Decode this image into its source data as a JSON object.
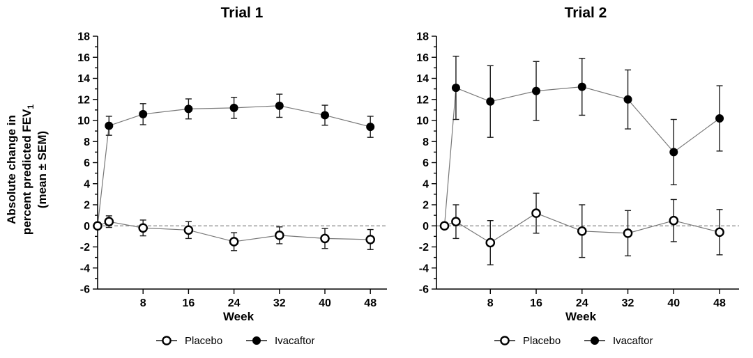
{
  "figure": {
    "background": "#ffffff",
    "ink_color": "#000000",
    "line_color": "#777777",
    "errorbar_color": "#1a1a1a",
    "zero_line_color": "#888888",
    "y_axis_label_lines": [
      [
        {
          "t": "Absolute change in"
        }
      ],
      [
        {
          "t": "percent predicted FEV"
        },
        {
          "t": "1",
          "sub": true
        }
      ],
      [
        {
          "t": "(mean ± SEM)"
        }
      ]
    ]
  },
  "chart_data": [
    {
      "type": "line",
      "title": "Trial 1",
      "xlabel": "Week",
      "ylabel": "Absolute change in percent predicted FEV1 (mean ± SEM)",
      "x": [
        0,
        2,
        8,
        16,
        24,
        32,
        40,
        48
      ],
      "xticks": [
        8,
        16,
        24,
        32,
        40,
        48
      ],
      "ylim": [
        -6,
        18
      ],
      "yticks": [
        -6,
        -4,
        -2,
        0,
        2,
        4,
        6,
        8,
        10,
        12,
        14,
        16,
        18
      ],
      "minor_ytick_step": 1,
      "grid": false,
      "zero_reference_line": true,
      "legend_position": "bottom",
      "series": [
        {
          "name": "Ivacaftor",
          "marker": "filled-circle",
          "values": [
            0.0,
            9.5,
            10.6,
            11.1,
            11.2,
            11.4,
            10.5,
            9.4
          ],
          "sem": [
            0.0,
            0.9,
            1.0,
            0.95,
            1.0,
            1.1,
            0.95,
            1.0
          ]
        },
        {
          "name": "Placebo",
          "marker": "open-circle",
          "values": [
            0.0,
            0.4,
            -0.2,
            -0.4,
            -1.5,
            -0.9,
            -1.2,
            -1.3
          ],
          "sem": [
            0.0,
            0.55,
            0.75,
            0.8,
            0.85,
            0.8,
            0.95,
            0.95
          ]
        }
      ]
    },
    {
      "type": "line",
      "title": "Trial 2",
      "xlabel": "Week",
      "ylabel": "Absolute change in percent predicted FEV1 (mean ± SEM)",
      "x": [
        0,
        2,
        8,
        16,
        24,
        32,
        40,
        48
      ],
      "xticks": [
        8,
        16,
        24,
        32,
        40,
        48
      ],
      "ylim": [
        -6,
        18
      ],
      "yticks": [
        -6,
        -4,
        -2,
        0,
        2,
        4,
        6,
        8,
        10,
        12,
        14,
        16,
        18
      ],
      "minor_ytick_step": 1,
      "grid": false,
      "zero_reference_line": true,
      "legend_position": "bottom",
      "series": [
        {
          "name": "Ivacaftor",
          "marker": "filled-circle",
          "values": [
            0.0,
            13.1,
            11.8,
            12.8,
            13.2,
            12.0,
            7.0,
            10.2
          ],
          "sem": [
            0.0,
            3.0,
            3.4,
            2.8,
            2.7,
            2.8,
            3.1,
            3.1
          ]
        },
        {
          "name": "Placebo",
          "marker": "open-circle",
          "values": [
            0.0,
            0.4,
            -1.6,
            1.2,
            -0.5,
            -0.7,
            0.5,
            -0.6
          ],
          "sem": [
            0.0,
            1.6,
            2.1,
            1.9,
            2.5,
            2.15,
            2.0,
            2.15
          ]
        }
      ]
    }
  ]
}
